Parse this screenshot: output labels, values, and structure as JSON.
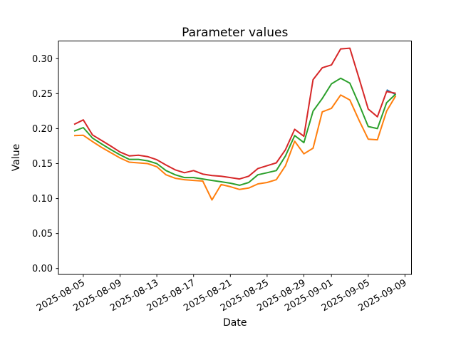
{
  "chart_data": {
    "type": "line",
    "title": "Parameter values",
    "xlabel": "Date",
    "ylabel": "Value",
    "grid": false,
    "legend": "none",
    "ylim": [
      -0.008,
      0.326
    ],
    "x": [
      "2025-08-04",
      "2025-08-05",
      "2025-08-06",
      "2025-08-07",
      "2025-08-08",
      "2025-08-09",
      "2025-08-10",
      "2025-08-11",
      "2025-08-12",
      "2025-08-13",
      "2025-08-14",
      "2025-08-15",
      "2025-08-16",
      "2025-08-17",
      "2025-08-18",
      "2025-08-19",
      "2025-08-20",
      "2025-08-21",
      "2025-08-22",
      "2025-08-23",
      "2025-08-24",
      "2025-08-25",
      "2025-08-26",
      "2025-08-27",
      "2025-08-28",
      "2025-08-29",
      "2025-08-30",
      "2025-08-31",
      "2025-09-01",
      "2025-09-02",
      "2025-09-03",
      "2025-09-04",
      "2025-09-05",
      "2025-09-06",
      "2025-09-07",
      "2025-09-08"
    ],
    "series": [
      {
        "name": "blue",
        "color": "#1f77b4",
        "values": [
          null,
          null,
          null,
          null,
          null,
          null,
          null,
          null,
          null,
          null,
          null,
          null,
          null,
          null,
          null,
          null,
          null,
          null,
          null,
          null,
          null,
          null,
          null,
          null,
          null,
          null,
          null,
          null,
          null,
          null,
          null,
          null,
          null,
          null,
          0.2555,
          0.2485
        ]
      },
      {
        "name": "orange",
        "color": "#ff7f0e",
        "values": [
          0.19,
          0.1905,
          0.1815,
          0.173,
          0.1655,
          0.158,
          0.152,
          0.151,
          0.15,
          0.1455,
          0.134,
          0.129,
          0.127,
          0.126,
          0.125,
          0.098,
          0.12,
          0.117,
          0.113,
          0.115,
          0.121,
          0.123,
          0.127,
          0.147,
          0.182,
          0.164,
          0.172,
          0.224,
          0.229,
          0.248,
          0.241,
          0.212,
          0.185,
          0.184,
          0.225,
          0.247
        ]
      },
      {
        "name": "green",
        "color": "#2ca02c",
        "values": [
          0.1965,
          0.2015,
          0.1865,
          0.178,
          0.17,
          0.1625,
          0.156,
          0.156,
          0.154,
          0.15,
          0.14,
          0.134,
          0.13,
          0.13,
          0.128,
          0.126,
          0.124,
          0.122,
          0.119,
          0.123,
          0.134,
          0.137,
          0.14,
          0.161,
          0.19,
          0.18,
          0.225,
          0.243,
          0.264,
          0.272,
          0.265,
          0.235,
          0.203,
          0.2,
          0.237,
          0.2495
        ]
      },
      {
        "name": "red",
        "color": "#d62728",
        "values": [
          0.206,
          0.2125,
          0.191,
          0.183,
          0.175,
          0.1665,
          0.161,
          0.162,
          0.16,
          0.1555,
          0.148,
          0.141,
          0.137,
          0.14,
          0.135,
          0.133,
          0.132,
          0.13,
          0.128,
          0.132,
          0.143,
          0.147,
          0.151,
          0.17,
          0.199,
          0.189,
          0.27,
          0.287,
          0.291,
          0.314,
          0.315,
          0.272,
          0.228,
          0.217,
          0.253,
          0.2505
        ]
      }
    ],
    "xticks": [
      "2025-08-05",
      "2025-08-09",
      "2025-08-13",
      "2025-08-17",
      "2025-08-21",
      "2025-08-25",
      "2025-08-29",
      "2025-09-01",
      "2025-09-05",
      "2025-09-09"
    ],
    "yticks": [
      "0.00",
      "0.05",
      "0.10",
      "0.15",
      "0.20",
      "0.25",
      "0.30"
    ]
  }
}
